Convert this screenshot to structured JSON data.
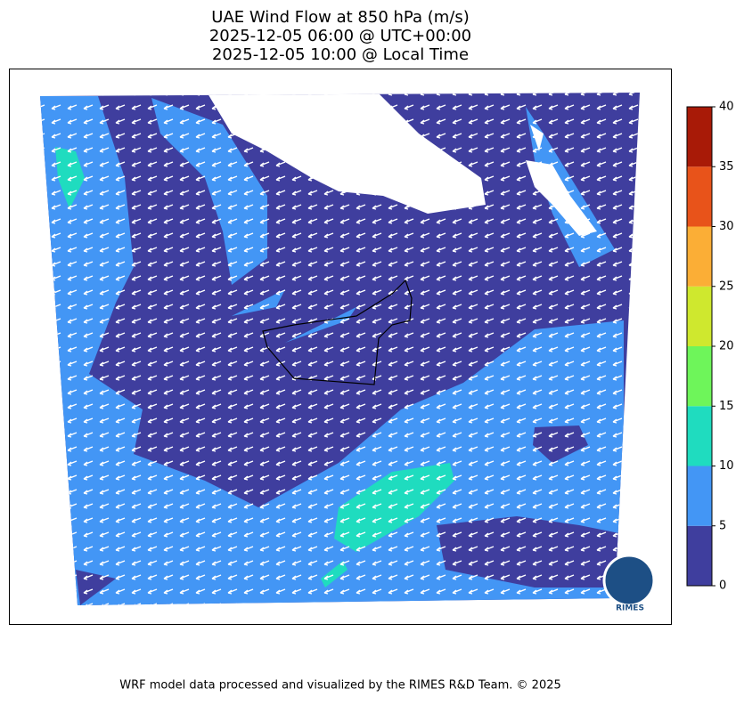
{
  "title": [
    "UAE Wind Flow at 850 hPa (m/s)",
    "2025-12-05 06:00 @ UTC+00:00",
    "2025-12-05 10:00 @ Local Time"
  ],
  "colorbar": {
    "ticks": [
      0,
      5,
      10,
      15,
      20,
      25,
      30,
      35,
      40
    ],
    "colors": [
      "#3f3e9e",
      "#4396f5",
      "#1fdcbf",
      "#6ef55a",
      "#cfe82e",
      "#fbae36",
      "#e8531a",
      "#a81a07"
    ]
  },
  "logo": "RIMES",
  "footer": "WRF model data processed and visualized by the RIMES R&D Team. © 2025"
}
